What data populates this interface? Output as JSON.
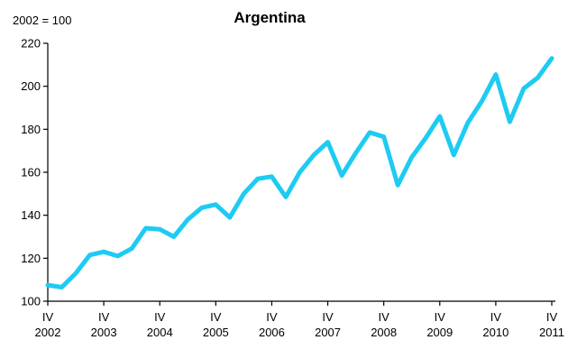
{
  "chart_data": {
    "type": "line",
    "title": "Argentina",
    "unit_label": "2002 = 100",
    "xlabel": "",
    "ylabel": "",
    "ylim": [
      100,
      220
    ],
    "yticks": [
      100,
      120,
      140,
      160,
      180,
      200,
      220
    ],
    "grid": false,
    "legend": "none",
    "x_tick_labels": [
      {
        "top": "IV",
        "bottom": "2002"
      },
      {
        "top": "IV",
        "bottom": "2003"
      },
      {
        "top": "IV",
        "bottom": "2004"
      },
      {
        "top": "IV",
        "bottom": "2005"
      },
      {
        "top": "IV",
        "bottom": "2006"
      },
      {
        "top": "IV",
        "bottom": "2007"
      },
      {
        "top": "IV",
        "bottom": "2008"
      },
      {
        "top": "IV",
        "bottom": "2009"
      },
      {
        "top": "IV",
        "bottom": "2010"
      },
      {
        "top": "IV",
        "bottom": "2011"
      }
    ],
    "x": [
      "2002 Q4",
      "2003 Q1",
      "2003 Q2",
      "2003 Q3",
      "2003 Q4",
      "2004 Q1",
      "2004 Q2",
      "2004 Q3",
      "2004 Q4",
      "2005 Q1",
      "2005 Q2",
      "2005 Q3",
      "2005 Q4",
      "2006 Q1",
      "2006 Q2",
      "2006 Q3",
      "2006 Q4",
      "2007 Q1",
      "2007 Q2",
      "2007 Q3",
      "2007 Q4",
      "2008 Q1",
      "2008 Q2",
      "2008 Q3",
      "2008 Q4",
      "2009 Q1",
      "2009 Q2",
      "2009 Q3",
      "2009 Q4",
      "2010 Q1",
      "2010 Q2",
      "2010 Q3",
      "2010 Q4",
      "2011 Q1",
      "2011 Q2",
      "2011 Q3",
      "2011 Q4"
    ],
    "series": [
      {
        "color": "#1ecbf2",
        "values": [
          107.5,
          106.5,
          113,
          121.5,
          123,
          121,
          124.5,
          134,
          133.5,
          130,
          138,
          143.5,
          145,
          139,
          150,
          157,
          158,
          148.5,
          160,
          168,
          174,
          158.5,
          169,
          178.5,
          176.5,
          154,
          167,
          176,
          186,
          168,
          183,
          193,
          205.5,
          183.5,
          199,
          204,
          213
        ]
      }
    ]
  }
}
